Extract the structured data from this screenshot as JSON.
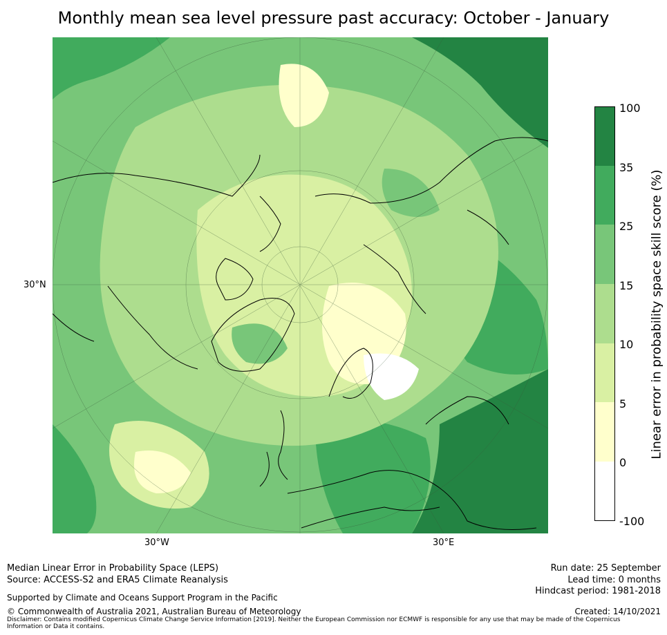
{
  "title": "Monthly mean sea level pressure past accuracy: October - January",
  "map": {
    "latitude_label": "30°N",
    "longitude_labels": [
      "30°W",
      "30°E"
    ]
  },
  "colorbar": {
    "label": "Linear error in probability space skill score (%)",
    "ticks": [
      "100",
      "35",
      "25",
      "15",
      "10",
      "5",
      "0",
      "-100"
    ],
    "colors": [
      "#238443",
      "#41ab5d",
      "#78c679",
      "#addd8e",
      "#d9f0a3",
      "#ffffcc",
      "#ffffff"
    ]
  },
  "footer": {
    "left_line1": "Median Linear Error in Probability Space (LEPS)",
    "left_line2": "Source: ACCESS-S2 and ERA5 Climate Reanalysis",
    "support": "Supported by Climate and Oceans Support Program in the Pacific",
    "copyright": "© Commonwealth of Australia 2021, Australian Bureau of Meteorology",
    "disclaimer": "Disclaimer: Contains modified Copernicus Climate Change Service Information [2019]. Neither the European Commission nor ECMWF is responsible for any use that may be made of the Copernicus Information or Data it contains.",
    "run_date": "Run date: 25 September",
    "lead_time": "Lead time: 0 months",
    "hindcast": "Hindcast period: 1981-2018",
    "created": "Created: 14/10/2021"
  }
}
